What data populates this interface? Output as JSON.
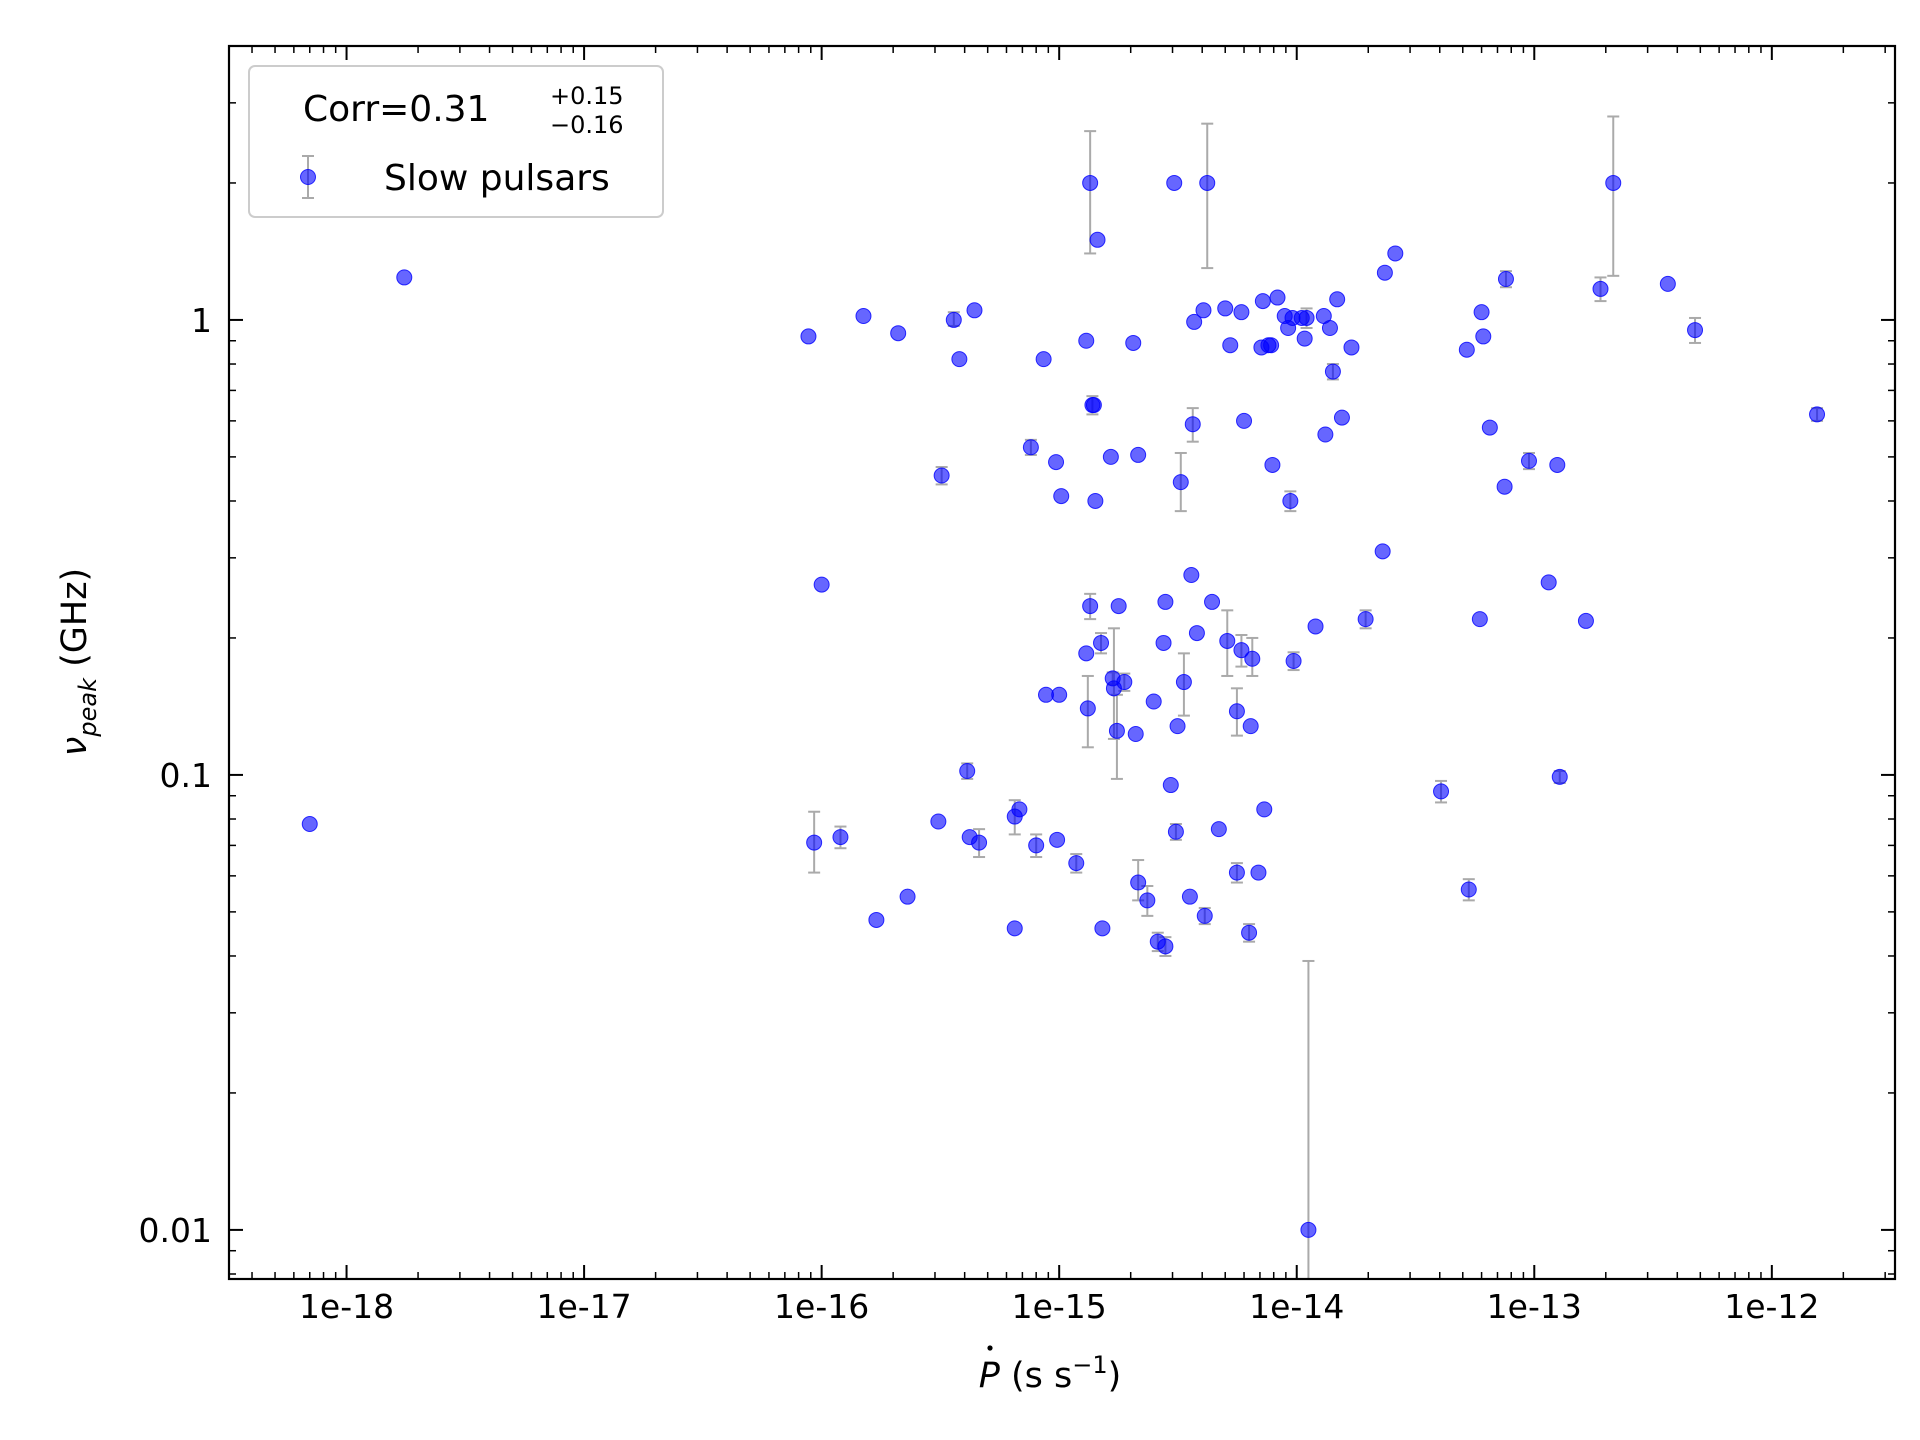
{
  "chart_data": {
    "type": "scatter",
    "xscale": "log",
    "yscale": "log",
    "xlim": [
      3.2e-19,
      3.3e-12
    ],
    "ylim": [
      0.0078,
      4.0
    ],
    "xlabel": "Ṗ (s s⁻¹)",
    "ylabel": "νpeak (GHz)",
    "xticks": [
      "1e-18",
      "1e-17",
      "1e-16",
      "1e-15",
      "1e-14",
      "1e-13",
      "1e-12"
    ],
    "yticks": [
      "0.01",
      "0.1",
      "1"
    ],
    "legend": {
      "position": "top-left",
      "corr_text": "Corr=0.31",
      "corr_upper": "+0.15",
      "corr_lower": "−0.16",
      "series_label": "Slow pulsars"
    },
    "series": [
      {
        "name": "Slow pulsars",
        "color": "#0000ff",
        "errorbar_color": "#aaaaaa",
        "points": [
          {
            "x": 7e-19,
            "y": 0.078
          },
          {
            "x": 1.75e-18,
            "y": 1.24
          },
          {
            "x": 8.8e-17,
            "y": 0.92
          },
          {
            "x": 9.3e-17,
            "y": 0.071,
            "ylo": 0.061,
            "yhi": 0.083
          },
          {
            "x": 1e-16,
            "y": 0.262
          },
          {
            "x": 1.2e-16,
            "y": 0.073,
            "ylo": 0.069,
            "yhi": 0.077
          },
          {
            "x": 1.5e-16,
            "y": 1.02
          },
          {
            "x": 1.7e-16,
            "y": 0.048
          },
          {
            "x": 2.1e-16,
            "y": 0.935
          },
          {
            "x": 2.3e-16,
            "y": 0.054
          },
          {
            "x": 3.1e-16,
            "y": 0.079
          },
          {
            "x": 3.2e-16,
            "y": 0.455,
            "ylo": 0.435,
            "yhi": 0.475
          },
          {
            "x": 3.6e-16,
            "y": 1.0,
            "ylo": 0.97,
            "yhi": 1.04
          },
          {
            "x": 3.8e-16,
            "y": 0.82
          },
          {
            "x": 4.1e-16,
            "y": 0.102,
            "ylo": 0.098,
            "yhi": 0.106
          },
          {
            "x": 4.2e-16,
            "y": 0.073
          },
          {
            "x": 4.4e-16,
            "y": 1.05
          },
          {
            "x": 4.6e-16,
            "y": 0.071,
            "ylo": 0.066,
            "yhi": 0.076
          },
          {
            "x": 6.5e-16,
            "y": 0.046
          },
          {
            "x": 6.5e-16,
            "y": 0.081,
            "ylo": 0.074,
            "yhi": 0.088
          },
          {
            "x": 6.8e-16,
            "y": 0.084
          },
          {
            "x": 7.6e-16,
            "y": 0.525,
            "ylo": 0.505,
            "yhi": 0.545
          },
          {
            "x": 8e-16,
            "y": 0.07,
            "ylo": 0.066,
            "yhi": 0.074
          },
          {
            "x": 8.6e-16,
            "y": 0.82
          },
          {
            "x": 8.8e-16,
            "y": 0.15
          },
          {
            "x": 9.7e-16,
            "y": 0.487
          },
          {
            "x": 9.8e-16,
            "y": 0.072
          },
          {
            "x": 1e-15,
            "y": 0.15
          },
          {
            "x": 1.02e-15,
            "y": 0.41
          },
          {
            "x": 1.18e-15,
            "y": 0.064,
            "ylo": 0.061,
            "yhi": 0.067
          },
          {
            "x": 1.3e-15,
            "y": 0.9
          },
          {
            "x": 1.3e-15,
            "y": 0.185
          },
          {
            "x": 1.32e-15,
            "y": 0.14,
            "ylo": 0.115,
            "yhi": 0.165
          },
          {
            "x": 1.35e-15,
            "y": 2.0,
            "ylo": 1.4,
            "yhi": 2.6
          },
          {
            "x": 1.35e-15,
            "y": 0.235,
            "ylo": 0.22,
            "yhi": 0.25
          },
          {
            "x": 1.38e-15,
            "y": 0.65,
            "ylo": 0.62,
            "yhi": 0.68
          },
          {
            "x": 1.4e-15,
            "y": 0.65
          },
          {
            "x": 1.42e-15,
            "y": 0.4
          },
          {
            "x": 1.45e-15,
            "y": 1.5
          },
          {
            "x": 1.5e-15,
            "y": 0.195,
            "ylo": 0.185,
            "yhi": 0.205
          },
          {
            "x": 1.52e-15,
            "y": 0.046
          },
          {
            "x": 1.65e-15,
            "y": 0.5
          },
          {
            "x": 1.68e-15,
            "y": 0.163,
            "ylo": 0.158,
            "yhi": 0.168
          },
          {
            "x": 1.7e-15,
            "y": 0.155,
            "ylo": 0.12,
            "yhi": 0.21
          },
          {
            "x": 1.75e-15,
            "y": 0.125,
            "ylo": 0.098,
            "yhi": 0.15
          },
          {
            "x": 1.78e-15,
            "y": 0.235
          },
          {
            "x": 1.88e-15,
            "y": 0.16,
            "ylo": 0.153,
            "yhi": 0.167
          },
          {
            "x": 2.05e-15,
            "y": 0.89
          },
          {
            "x": 2.1e-15,
            "y": 0.123
          },
          {
            "x": 2.15e-15,
            "y": 0.505
          },
          {
            "x": 2.15e-15,
            "y": 0.058,
            "ylo": 0.053,
            "yhi": 0.065
          },
          {
            "x": 2.35e-15,
            "y": 0.053,
            "ylo": 0.049,
            "yhi": 0.057
          },
          {
            "x": 2.5e-15,
            "y": 0.145
          },
          {
            "x": 2.6e-15,
            "y": 0.043,
            "ylo": 0.041,
            "yhi": 0.045
          },
          {
            "x": 2.75e-15,
            "y": 0.195
          },
          {
            "x": 2.8e-15,
            "y": 0.042,
            "ylo": 0.04,
            "yhi": 0.044
          },
          {
            "x": 2.8e-15,
            "y": 0.24
          },
          {
            "x": 2.95e-15,
            "y": 0.095
          },
          {
            "x": 3.05e-15,
            "y": 2.0
          },
          {
            "x": 3.1e-15,
            "y": 0.075,
            "ylo": 0.072,
            "yhi": 0.078
          },
          {
            "x": 3.15e-15,
            "y": 0.128
          },
          {
            "x": 3.25e-15,
            "y": 0.44,
            "ylo": 0.38,
            "yhi": 0.51
          },
          {
            "x": 3.35e-15,
            "y": 0.16,
            "ylo": 0.135,
            "yhi": 0.185
          },
          {
            "x": 3.55e-15,
            "y": 0.054
          },
          {
            "x": 3.6e-15,
            "y": 0.275
          },
          {
            "x": 3.65e-15,
            "y": 0.59,
            "ylo": 0.54,
            "yhi": 0.64
          },
          {
            "x": 3.7e-15,
            "y": 0.99
          },
          {
            "x": 3.8e-15,
            "y": 0.205
          },
          {
            "x": 4.05e-15,
            "y": 1.05
          },
          {
            "x": 4.1e-15,
            "y": 0.049,
            "ylo": 0.047,
            "yhi": 0.051
          },
          {
            "x": 4.2e-15,
            "y": 2.0,
            "ylo": 1.3,
            "yhi": 2.7
          },
          {
            "x": 4.4e-15,
            "y": 0.24
          },
          {
            "x": 4.7e-15,
            "y": 0.076
          },
          {
            "x": 5e-15,
            "y": 1.06
          },
          {
            "x": 5.1e-15,
            "y": 0.197,
            "ylo": 0.165,
            "yhi": 0.23
          },
          {
            "x": 5.25e-15,
            "y": 0.88
          },
          {
            "x": 5.6e-15,
            "y": 0.061,
            "ylo": 0.058,
            "yhi": 0.064
          },
          {
            "x": 5.6e-15,
            "y": 0.138,
            "ylo": 0.122,
            "yhi": 0.155
          },
          {
            "x": 5.85e-15,
            "y": 1.04
          },
          {
            "x": 5.85e-15,
            "y": 0.188,
            "ylo": 0.173,
            "yhi": 0.203
          },
          {
            "x": 6e-15,
            "y": 0.6
          },
          {
            "x": 6.3e-15,
            "y": 0.045,
            "ylo": 0.043,
            "yhi": 0.047
          },
          {
            "x": 6.4e-15,
            "y": 0.128
          },
          {
            "x": 6.5e-15,
            "y": 0.18,
            "ylo": 0.165,
            "yhi": 0.2
          },
          {
            "x": 6.9e-15,
            "y": 0.061
          },
          {
            "x": 7.1e-15,
            "y": 0.87
          },
          {
            "x": 7.2e-15,
            "y": 1.1
          },
          {
            "x": 7.3e-15,
            "y": 0.084
          },
          {
            "x": 7.6e-15,
            "y": 0.88
          },
          {
            "x": 7.8e-15,
            "y": 0.88
          },
          {
            "x": 7.9e-15,
            "y": 0.48
          },
          {
            "x": 8.3e-15,
            "y": 1.12
          },
          {
            "x": 8.9e-15,
            "y": 1.02
          },
          {
            "x": 9.2e-15,
            "y": 0.96
          },
          {
            "x": 9.4e-15,
            "y": 0.4,
            "ylo": 0.38,
            "yhi": 0.42
          },
          {
            "x": 9.6e-15,
            "y": 1.01
          },
          {
            "x": 9.7e-15,
            "y": 0.178,
            "ylo": 0.17,
            "yhi": 0.186
          },
          {
            "x": 1.05e-14,
            "y": 1.01
          },
          {
            "x": 1.08e-14,
            "y": 0.91
          },
          {
            "x": 1.1e-14,
            "y": 1.01,
            "ylo": 0.96,
            "yhi": 1.06
          },
          {
            "x": 1.12e-14,
            "y": 0.01,
            "ylo": 0.005,
            "yhi": 0.039
          },
          {
            "x": 1.2e-14,
            "y": 0.212
          },
          {
            "x": 1.3e-14,
            "y": 1.02
          },
          {
            "x": 1.32e-14,
            "y": 0.56
          },
          {
            "x": 1.38e-14,
            "y": 0.96
          },
          {
            "x": 1.42e-14,
            "y": 0.77,
            "ylo": 0.74,
            "yhi": 0.8
          },
          {
            "x": 1.48e-14,
            "y": 1.11
          },
          {
            "x": 1.55e-14,
            "y": 0.61
          },
          {
            "x": 1.7e-14,
            "y": 0.87
          },
          {
            "x": 1.95e-14,
            "y": 0.22,
            "ylo": 0.21,
            "yhi": 0.23
          },
          {
            "x": 2.3e-14,
            "y": 0.31
          },
          {
            "x": 2.35e-14,
            "y": 1.27
          },
          {
            "x": 2.6e-14,
            "y": 1.4
          },
          {
            "x": 4.05e-14,
            "y": 0.092,
            "ylo": 0.087,
            "yhi": 0.097
          },
          {
            "x": 5.2e-14,
            "y": 0.86
          },
          {
            "x": 5.3e-14,
            "y": 0.056,
            "ylo": 0.053,
            "yhi": 0.059
          },
          {
            "x": 5.9e-14,
            "y": 0.22
          },
          {
            "x": 6e-14,
            "y": 1.04
          },
          {
            "x": 6.1e-14,
            "y": 0.92
          },
          {
            "x": 6.5e-14,
            "y": 0.58
          },
          {
            "x": 7.5e-14,
            "y": 0.43
          },
          {
            "x": 7.6e-14,
            "y": 1.23,
            "ylo": 1.18,
            "yhi": 1.28
          },
          {
            "x": 9.5e-14,
            "y": 0.49,
            "ylo": 0.47,
            "yhi": 0.51
          },
          {
            "x": 1.15e-13,
            "y": 0.265
          },
          {
            "x": 1.25e-13,
            "y": 0.48
          },
          {
            "x": 1.28e-13,
            "y": 0.099,
            "ylo": 0.096,
            "yhi": 0.102
          },
          {
            "x": 1.65e-13,
            "y": 0.218
          },
          {
            "x": 1.9e-13,
            "y": 1.17,
            "ylo": 1.1,
            "yhi": 1.24
          },
          {
            "x": 2.15e-13,
            "y": 2.0,
            "ylo": 1.25,
            "yhi": 2.8
          },
          {
            "x": 3.65e-13,
            "y": 1.2
          },
          {
            "x": 4.75e-13,
            "y": 0.95,
            "ylo": 0.89,
            "yhi": 1.01
          },
          {
            "x": 1.55e-12,
            "y": 0.62,
            "ylo": 0.6,
            "yhi": 0.64
          }
        ]
      }
    ]
  }
}
